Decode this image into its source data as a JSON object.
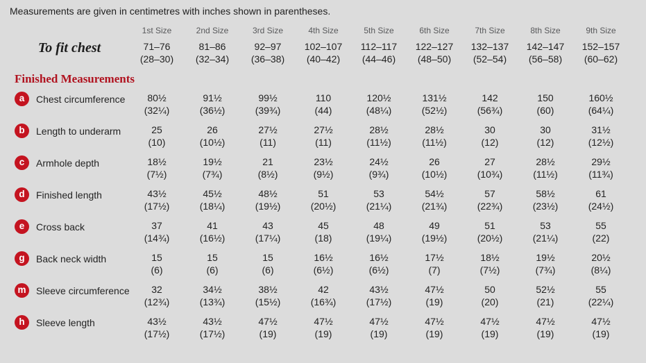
{
  "intro": "Measurements are given in centimetres with inches shown in parentheses.",
  "colors": {
    "background": "#dcdcdc",
    "accent_red": "#b0121f",
    "badge_red": "#c41420",
    "header_gray": "#58595b"
  },
  "table": {
    "size_headers": [
      "1st Size",
      "2nd Size",
      "3rd Size",
      "4th Size",
      "5th Size",
      "6th Size",
      "7th Size",
      "8th Size",
      "9th Size"
    ],
    "to_fit": {
      "label": "To fit chest",
      "cm": [
        "71–76",
        "81–86",
        "92–97",
        "102–107",
        "112–117",
        "122–127",
        "132–137",
        "142–147",
        "152–157"
      ],
      "inches": [
        "(28–30)",
        "(32–34)",
        "(36–38)",
        "(40–42)",
        "(44–46)",
        "(48–50)",
        "(52–54)",
        "(56–58)",
        "(60–62)"
      ]
    },
    "section_heading": "Finished Measurements",
    "rows": [
      {
        "key": "a",
        "label": "Chest circumference",
        "cm": [
          "80½",
          "91½",
          "99½",
          "110",
          "120½",
          "131½",
          "142",
          "150",
          "160½"
        ],
        "inches": [
          "(32¼)",
          "(36½)",
          "(39¾)",
          "(44)",
          "(48¼)",
          "(52½)",
          "(56¾)",
          "(60)",
          "(64¼)"
        ]
      },
      {
        "key": "b",
        "label": "Length to underarm",
        "cm": [
          "25",
          "26",
          "27½",
          "27½",
          "28½",
          "28½",
          "30",
          "30",
          "31½"
        ],
        "inches": [
          "(10)",
          "(10½)",
          "(11)",
          "(11)",
          "(11½)",
          "(11½)",
          "(12)",
          "(12)",
          "(12½)"
        ]
      },
      {
        "key": "c",
        "label": "Armhole depth",
        "cm": [
          "18½",
          "19½",
          "21",
          "23½",
          "24½",
          "26",
          "27",
          "28½",
          "29½"
        ],
        "inches": [
          "(7½)",
          "(7¾)",
          "(8½)",
          "(9½)",
          "(9¾)",
          "(10½)",
          "(10¾)",
          "(11½)",
          "(11¾)"
        ]
      },
      {
        "key": "d",
        "label": "Finished length",
        "cm": [
          "43½",
          "45½",
          "48½",
          "51",
          "53",
          "54½",
          "57",
          "58½",
          "61"
        ],
        "inches": [
          "(17½)",
          "(18¼)",
          "(19½)",
          "(20½)",
          "(21¼)",
          "(21¾)",
          "(22¾)",
          "(23½)",
          "(24½)"
        ]
      },
      {
        "key": "e",
        "label": "Cross back",
        "cm": [
          "37",
          "41",
          "43",
          "45",
          "48",
          "49",
          "51",
          "53",
          "55"
        ],
        "inches": [
          "(14¾)",
          "(16½)",
          "(17¼)",
          "(18)",
          "(19¼)",
          "(19½)",
          "(20½)",
          "(21¼)",
          "(22)"
        ]
      },
      {
        "key": "g",
        "label": "Back neck width",
        "cm": [
          "15",
          "15",
          "15",
          "16½",
          "16½",
          "17½",
          "18½",
          "19½",
          "20½"
        ],
        "inches": [
          "(6)",
          "(6)",
          "(6)",
          "(6½)",
          "(6½)",
          "(7)",
          "(7½)",
          "(7¾)",
          "(8¼)"
        ]
      },
      {
        "key": "m",
        "label": "Sleeve circumference",
        "cm": [
          "32",
          "34½",
          "38½",
          "42",
          "43½",
          "47½",
          "50",
          "52½",
          "55"
        ],
        "inches": [
          "(12¾)",
          "(13¾)",
          "(15½)",
          "(16¾)",
          "(17½)",
          "(19)",
          "(20)",
          "(21)",
          "(22¼)"
        ]
      },
      {
        "key": "h",
        "label": "Sleeve length",
        "cm": [
          "43½",
          "43½",
          "47½",
          "47½",
          "47½",
          "47½",
          "47½",
          "47½",
          "47½"
        ],
        "inches": [
          "(17½)",
          "(17½)",
          "(19)",
          "(19)",
          "(19)",
          "(19)",
          "(19)",
          "(19)",
          "(19)"
        ]
      }
    ]
  }
}
